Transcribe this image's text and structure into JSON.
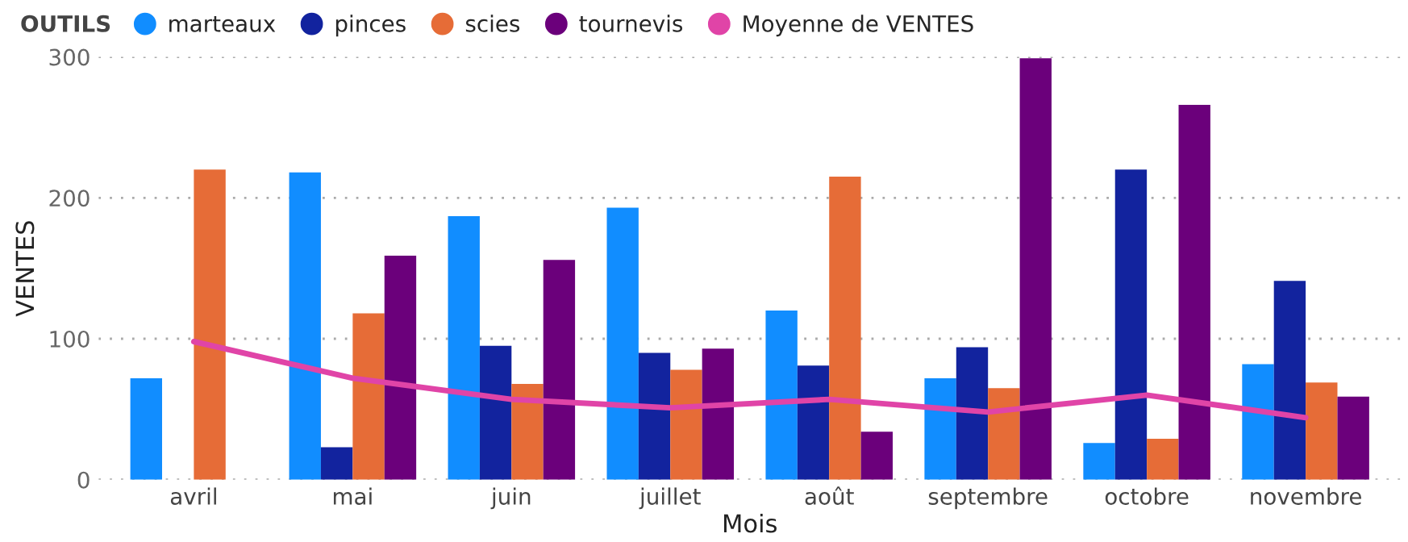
{
  "chart_data": {
    "type": "bar",
    "xlabel": "Mois",
    "ylabel": "VENTES",
    "legend_title": "OUTILS",
    "legend": "top left",
    "grid": "y",
    "categories": [
      "avril",
      "mai",
      "juin",
      "juillet",
      "août",
      "septembre",
      "octobre",
      "novembre"
    ],
    "ylim": [
      0,
      300
    ],
    "yticks": [
      0,
      100,
      200,
      300
    ],
    "series": [
      {
        "name": "marteaux",
        "color": "#118dff",
        "values": [
          72,
          218,
          187,
          193,
          120,
          72,
          26,
          82
        ]
      },
      {
        "name": "pinces",
        "color": "#12239e",
        "values": [
          null,
          23,
          95,
          90,
          81,
          94,
          220,
          141
        ]
      },
      {
        "name": "scies",
        "color": "#e66c37",
        "values": [
          220,
          118,
          68,
          78,
          215,
          65,
          29,
          69
        ]
      },
      {
        "name": "tournevis",
        "color": "#6b007b",
        "values": [
          null,
          159,
          156,
          93,
          34,
          299,
          266,
          59
        ]
      },
      {
        "name": "Moyenne de VENTES",
        "type": "line",
        "color": "#e044a7",
        "marker": "none",
        "values": [
          98,
          72,
          57,
          51,
          57,
          48,
          60,
          44
        ]
      }
    ]
  }
}
